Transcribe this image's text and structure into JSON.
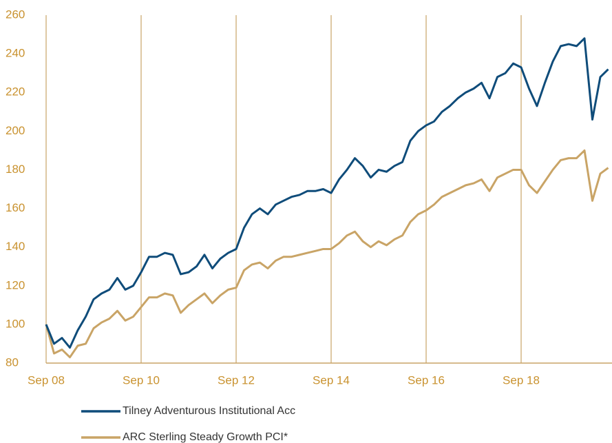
{
  "chart_data": {
    "type": "line",
    "categories": [
      "Sep 08",
      null,
      null,
      null,
      null,
      null,
      null,
      null,
      null,
      null,
      null,
      null,
      "Sep 10",
      null,
      null,
      null,
      null,
      null,
      null,
      null,
      null,
      null,
      null,
      null,
      "Sep 12",
      null,
      null,
      null,
      null,
      null,
      null,
      null,
      null,
      null,
      null,
      null,
      "Sep 14",
      null,
      null,
      null,
      null,
      null,
      null,
      null,
      null,
      null,
      null,
      null,
      "Sep 16",
      null,
      null,
      null,
      null,
      null,
      null,
      null,
      null,
      null,
      null,
      null,
      "Sep 18",
      null,
      null,
      null,
      null,
      null,
      null,
      null,
      null,
      null,
      null,
      null
    ],
    "series": [
      {
        "name": "Tilney Adventurous Institutional Acc",
        "color": "#0f4c7a",
        "values": [
          100,
          90,
          93,
          88,
          97,
          104,
          113,
          116,
          118,
          124,
          118,
          120,
          127,
          135,
          135,
          137,
          136,
          126,
          127,
          130,
          136,
          129,
          134,
          137,
          139,
          150,
          157,
          160,
          157,
          162,
          164,
          166,
          167,
          169,
          169,
          170,
          168,
          175,
          180,
          186,
          182,
          176,
          180,
          179,
          182,
          184,
          195,
          200,
          203,
          205,
          210,
          213,
          217,
          220,
          222,
          225,
          217,
          228,
          230,
          235,
          233,
          222,
          213,
          225,
          236,
          244,
          245,
          244,
          248,
          206,
          228,
          232
        ]
      },
      {
        "name": "ARC Sterling Steady Growth PCI*",
        "color": "#c9a466",
        "values": [
          100,
          85,
          87,
          83,
          89,
          90,
          98,
          101,
          103,
          107,
          102,
          104,
          109,
          114,
          114,
          116,
          115,
          106,
          110,
          113,
          116,
          111,
          115,
          118,
          119,
          128,
          131,
          132,
          129,
          133,
          135,
          135,
          136,
          137,
          138,
          139,
          139,
          142,
          146,
          148,
          143,
          140,
          143,
          141,
          144,
          146,
          153,
          157,
          159,
          162,
          166,
          168,
          170,
          172,
          173,
          175,
          169,
          176,
          178,
          180,
          180,
          172,
          168,
          174,
          180,
          185,
          186,
          186,
          190,
          164,
          178,
          181
        ]
      }
    ],
    "ylim": [
      80,
      260
    ],
    "yticks": [
      80,
      100,
      120,
      140,
      160,
      180,
      200,
      220,
      240,
      260
    ],
    "grid_color": "#c9a466",
    "tick_color": "#c9922f"
  }
}
